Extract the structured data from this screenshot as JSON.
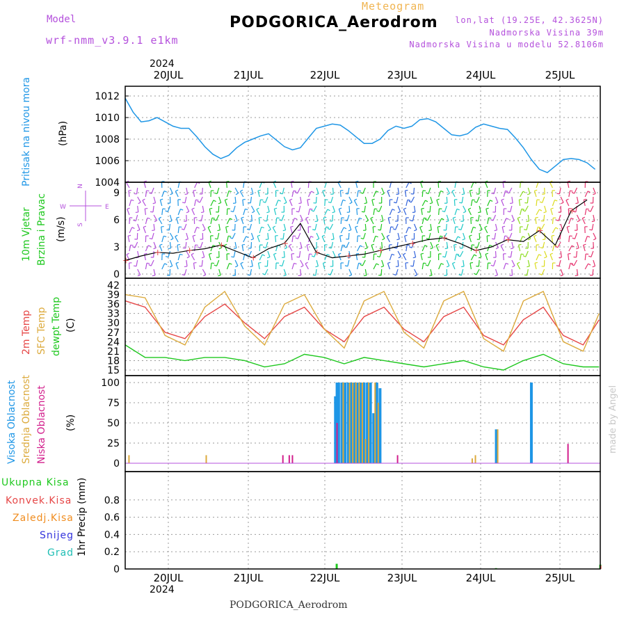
{
  "header": {
    "model_label": "Model",
    "model_version": "wrf-nmm_v3.9.1 e1km",
    "meteogram_label": "Meteogram",
    "station_title": "PODGORICA_Aerodrom",
    "lonlat": "lon,lat (19.25E, 42.3625N)",
    "altitude": "Nadmorska Visina 39m",
    "model_altitude": "Nadmorska Visina u modelu 52.8106m",
    "footer_title": "PODGORICA_Aerodrom",
    "credit": "made by Angel"
  },
  "time_axis": {
    "year": "2024",
    "days": [
      "20JUL",
      "21JUL",
      "22JUL",
      "23JUL",
      "24JUL",
      "25JUL"
    ]
  },
  "panels": {
    "pressure": {
      "label": "Pritisak na nivou mora",
      "unit": "(hPa)"
    },
    "wind": {
      "label_1": "10m Vjetar",
      "label_2": "Brzina i Pravac",
      "unit": "(m/s)",
      "compass": [
        "N",
        "E",
        "S",
        "W"
      ]
    },
    "temperature": {
      "label_1": "2m Temp",
      "label_2": "SFC Temp",
      "label_3": "dewpt Temp",
      "unit": "(C)"
    },
    "cloud": {
      "label_1": "Visoka Oblacnost",
      "label_2": "Srednja Oblacnost",
      "label_3": "Niska Oblacnost",
      "unit": "(%)"
    },
    "precip": {
      "unit": "1hr Precip (mm)",
      "legend": [
        "Ukupna Kisa",
        "Konvek.Kisa",
        "Zaledj.Kisa",
        "Snijeg",
        "Grad"
      ]
    }
  },
  "colors": {
    "pressure": "#1e96e6",
    "temp2m": "#e64646",
    "sfc": "#dcaa3c",
    "dewpt": "#1ec81e",
    "high_cloud": "#1e96e6",
    "mid_cloud": "#dcaa3c",
    "low_cloud": "#d21e8c",
    "total_rain": "#1ec81e",
    "conv_rain": "#e64646",
    "frz_rain": "#f08c1e",
    "snow": "#3232dc",
    "hail": "#1ebeb4",
    "model_text": "#b450dc",
    "meteogram_text": "#f0b450"
  },
  "chart_data": [
    {
      "type": "line",
      "name": "pressure",
      "x": [
        0,
        0.1,
        0.2,
        0.3,
        0.4,
        0.5,
        0.6,
        0.7,
        0.8,
        0.9,
        1.0,
        1.1,
        1.2,
        1.3,
        1.4,
        1.5,
        1.6,
        1.7,
        1.8,
        1.9,
        2.0,
        2.1,
        2.2,
        2.3,
        2.4,
        2.5,
        2.6,
        2.7,
        2.8,
        2.9,
        3.0,
        3.1,
        3.2,
        3.3,
        3.4,
        3.5,
        3.6,
        3.7,
        3.8,
        3.9,
        4.0,
        4.1,
        4.2,
        4.3,
        4.4,
        4.5,
        4.6,
        4.7,
        4.8,
        4.9,
        5.0,
        5.1,
        5.2,
        5.3,
        5.4,
        5.5,
        5.6,
        5.7,
        5.8,
        5.9
      ],
      "y": [
        1011.8,
        1010.5,
        1009.6,
        1009.7,
        1010.0,
        1009.6,
        1009.2,
        1009.0,
        1009.0,
        1008.2,
        1007.3,
        1006.6,
        1006.2,
        1006.5,
        1007.2,
        1007.7,
        1008.0,
        1008.3,
        1008.5,
        1007.9,
        1007.3,
        1007.0,
        1007.2,
        1008.1,
        1009.0,
        1009.2,
        1009.4,
        1009.3,
        1008.8,
        1008.2,
        1007.6,
        1007.6,
        1008.0,
        1008.8,
        1009.2,
        1009.0,
        1009.2,
        1009.8,
        1009.9,
        1009.6,
        1009.0,
        1008.4,
        1008.3,
        1008.5,
        1009.1,
        1009.4,
        1009.2,
        1009.0,
        1008.9,
        1008.1,
        1007.2,
        1006.1,
        1005.2,
        1004.9,
        1005.5,
        1006.1,
        1006.2,
        1006.1,
        1005.8,
        1005.2
      ],
      "xlabel": "",
      "ylabel": "(hPa)",
      "ylim": [
        1004,
        1012
      ]
    },
    {
      "type": "line",
      "name": "wind speed",
      "x": [
        0,
        0.2,
        0.4,
        0.6,
        0.8,
        1.0,
        1.2,
        1.4,
        1.6,
        1.8,
        2.0,
        2.2,
        2.4,
        2.6,
        2.8,
        3.0,
        3.2,
        3.4,
        3.6,
        3.8,
        4.0,
        4.2,
        4.4,
        4.6,
        4.8,
        5.0,
        5.2,
        5.4,
        5.6,
        5.8
      ],
      "y": [
        1.5,
        2.0,
        2.4,
        2.3,
        2.6,
        2.8,
        3.2,
        2.5,
        1.8,
        2.8,
        3.4,
        5.6,
        2.4,
        1.8,
        2.0,
        2.2,
        2.6,
        3.0,
        3.4,
        3.8,
        4.0,
        3.4,
        2.6,
        3.0,
        3.8,
        3.6,
        4.8,
        3.2,
        7.0,
        8.2
      ],
      "xlabel": "",
      "ylabel": "(m/s)",
      "ylim": [
        0,
        10
      ]
    },
    {
      "type": "line",
      "x": [
        0,
        0.25,
        0.5,
        0.75,
        1.0,
        1.25,
        1.5,
        1.75,
        2.0,
        2.25,
        2.5,
        2.75,
        3.0,
        3.25,
        3.5,
        3.75,
        4.0,
        4.25,
        4.5,
        4.75,
        5.0,
        5.25,
        5.5,
        5.75,
        5.95
      ],
      "series": [
        {
          "name": "2m Temp",
          "values": [
            37,
            35,
            27,
            25,
            32,
            36,
            30,
            25,
            32,
            35,
            28,
            24,
            32,
            35,
            28,
            24,
            32,
            35,
            26,
            23,
            31,
            35,
            26,
            23,
            31
          ]
        },
        {
          "name": "SFC Temp",
          "values": [
            39,
            38,
            26,
            23,
            35,
            40,
            29,
            23,
            36,
            39,
            28,
            22,
            37,
            40,
            27,
            22,
            37,
            40,
            25,
            21,
            37,
            40,
            24,
            21,
            33
          ]
        },
        {
          "name": "dewpt Temp",
          "values": [
            23,
            19,
            19,
            18,
            19,
            19,
            18,
            16,
            17,
            20,
            19,
            17,
            19,
            18,
            17,
            16,
            17,
            18,
            16,
            15,
            18,
            20,
            17,
            16,
            16
          ]
        }
      ],
      "xlabel": "",
      "ylabel": "(C)",
      "ylim": [
        14,
        43
      ]
    },
    {
      "type": "bar",
      "name": "cloud cover",
      "x_high": [
        2.64,
        2.66,
        2.68,
        2.72,
        2.76,
        2.8,
        2.84,
        2.88,
        2.92,
        2.96,
        3.0,
        3.04,
        3.08,
        3.12,
        3.16,
        3.2,
        4.66,
        5.1
      ],
      "high": [
        83,
        100,
        100,
        100,
        100,
        100,
        100,
        100,
        100,
        100,
        100,
        100,
        100,
        62,
        100,
        93,
        42,
        100
      ],
      "x_mid": [
        0.03,
        1.0,
        2.72,
        2.8,
        2.84,
        2.88,
        2.92,
        2.96,
        3.0,
        3.04,
        3.12,
        3.16,
        4.34,
        4.38,
        4.66
      ],
      "mid": [
        10,
        10,
        100,
        100,
        100,
        100,
        100,
        100,
        30,
        100,
        100,
        75,
        6,
        10,
        42
      ],
      "x_low": [
        1.98,
        2.06,
        2.1,
        2.66,
        3.42,
        5.56
      ],
      "low": [
        10,
        10,
        10,
        50,
        10,
        24
      ],
      "xlabel": "",
      "ylabel": "(%)",
      "ylim": [
        0,
        100
      ]
    },
    {
      "type": "bar",
      "name": "precipitation",
      "x": [
        2.66,
        4.66,
        5.97
      ],
      "series": [
        {
          "name": "Ukupna Kisa",
          "values": [
            0.06,
            0.01,
            0.05
          ]
        },
        {
          "name": "Konvek.Kisa",
          "values": [
            0.0,
            0.0,
            0.04
          ]
        }
      ],
      "xlabel": "",
      "ylabel": "1hr Precip (mm)",
      "ylim": [
        0,
        1
      ]
    }
  ]
}
